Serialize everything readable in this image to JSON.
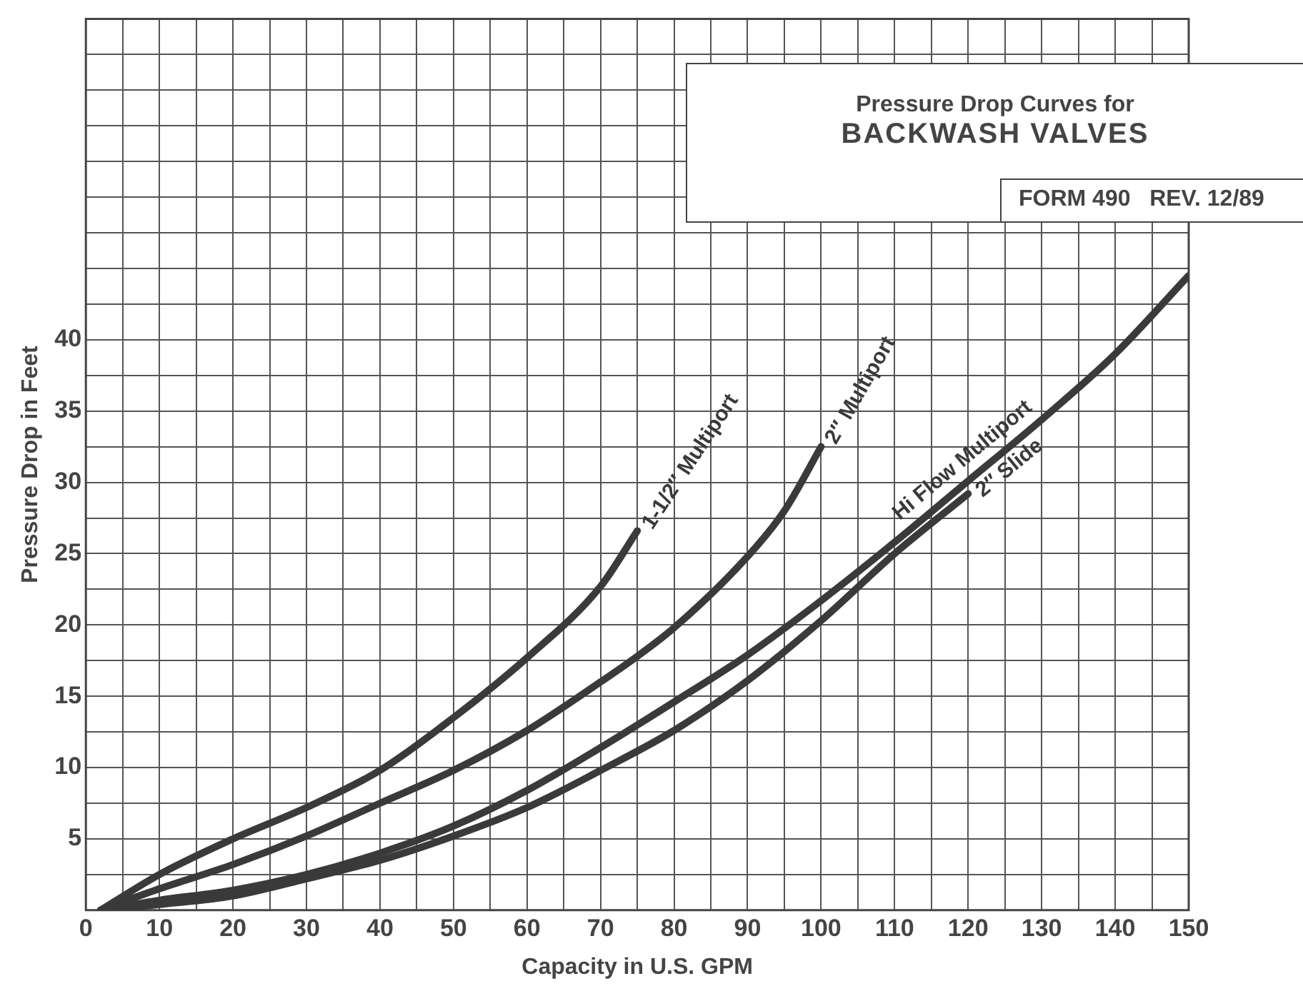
{
  "chart_data": {
    "type": "line",
    "title": "Pressure Drop Curves for",
    "subtitle": "BACKWASH VALVES",
    "xlabel": "Capacity in U.S. GPM",
    "ylabel": "Pressure Drop in Feet",
    "annotations": [
      "FORM 490   REV. 12/89"
    ],
    "xlim": [
      0,
      150
    ],
    "ylim": [
      0,
      62.5
    ],
    "xticks": [
      0,
      {
        "value": 5,
        "label": null
      },
      10,
      {
        "value": 15,
        "label": null
      },
      20,
      {
        "value": 25,
        "label": null
      },
      30,
      {
        "value": 35,
        "label": null
      },
      40,
      {
        "value": 45,
        "label": null
      },
      50,
      {
        "value": 55,
        "label": null
      },
      60,
      {
        "value": 65,
        "label": null
      },
      70,
      {
        "value": 75,
        "label": null
      },
      80,
      {
        "value": 85,
        "label": null
      },
      90,
      {
        "value": 95,
        "label": null
      },
      100,
      {
        "value": 105,
        "label": null
      },
      110,
      {
        "value": 115,
        "label": null
      },
      120,
      {
        "value": 125,
        "label": null
      },
      130,
      {
        "value": 135,
        "label": null
      },
      140,
      {
        "value": 145,
        "label": null
      },
      150
    ],
    "yticks": [
      {
        "value": 0,
        "label": null
      },
      {
        "value": 2.5,
        "label": null
      },
      5,
      {
        "value": 7.5,
        "label": null
      },
      10,
      {
        "value": 12.5,
        "label": null
      },
      15,
      {
        "value": 17.5,
        "label": null
      },
      20,
      {
        "value": 22.5,
        "label": null
      },
      25,
      {
        "value": 27.5,
        "label": null
      },
      30,
      {
        "value": 32.5,
        "label": null
      },
      35,
      {
        "value": 37.5,
        "label": null
      },
      40,
      {
        "value": 42.5,
        "label": null
      },
      {
        "value": 45,
        "label": null
      },
      {
        "value": 47.5,
        "label": null
      },
      {
        "value": 50,
        "label": null
      },
      {
        "value": 52.5,
        "label": null
      },
      {
        "value": 55,
        "label": null
      },
      {
        "value": 57.5,
        "label": null
      },
      {
        "value": 60,
        "label": null
      },
      {
        "value": 62.5,
        "label": null
      }
    ],
    "grid": true,
    "legend": false,
    "marker": "none",
    "line_style": "solid",
    "series": [
      {
        "name": "1-1/2″ Multiport",
        "color": "#3a3a3a",
        "x": [
          2,
          10,
          20,
          30,
          40,
          50,
          60,
          70,
          75
        ],
        "values": [
          0,
          2.5,
          5,
          7.2,
          9.8,
          13.5,
          17.7,
          22.7,
          26.6
        ]
      },
      {
        "name": "2″ Multiport",
        "color": "#3a3a3a",
        "x": [
          2,
          10,
          20,
          30,
          40,
          50,
          60,
          70,
          75,
          80,
          90,
          95,
          100
        ],
        "values": [
          0,
          1.5,
          3.2,
          5.2,
          7.5,
          9.8,
          12.6,
          16,
          17.8,
          19.8,
          24.8,
          28,
          32.5
        ]
      },
      {
        "name": "Hi Flow Multiport",
        "color": "#3a3a3a",
        "x": [
          2,
          10,
          20,
          30,
          40,
          50,
          60,
          70,
          80,
          90,
          100,
          110,
          120,
          130,
          140,
          150
        ],
        "values": [
          0,
          0.7,
          1.4,
          2.5,
          4,
          5.9,
          8.4,
          11.4,
          14.6,
          17.9,
          21.7,
          25.8,
          30.1,
          34.4,
          39,
          44.5
        ]
      },
      {
        "name": "2″ Slide",
        "color": "#3a3a3a",
        "x": [
          2,
          10,
          20,
          30,
          40,
          50,
          60,
          70,
          80,
          90,
          100,
          110,
          120
        ],
        "values": [
          0,
          0.4,
          1,
          2.2,
          3.5,
          5.2,
          7.2,
          9.8,
          12.6,
          16.1,
          20.3,
          25,
          29.2
        ]
      }
    ]
  }
}
